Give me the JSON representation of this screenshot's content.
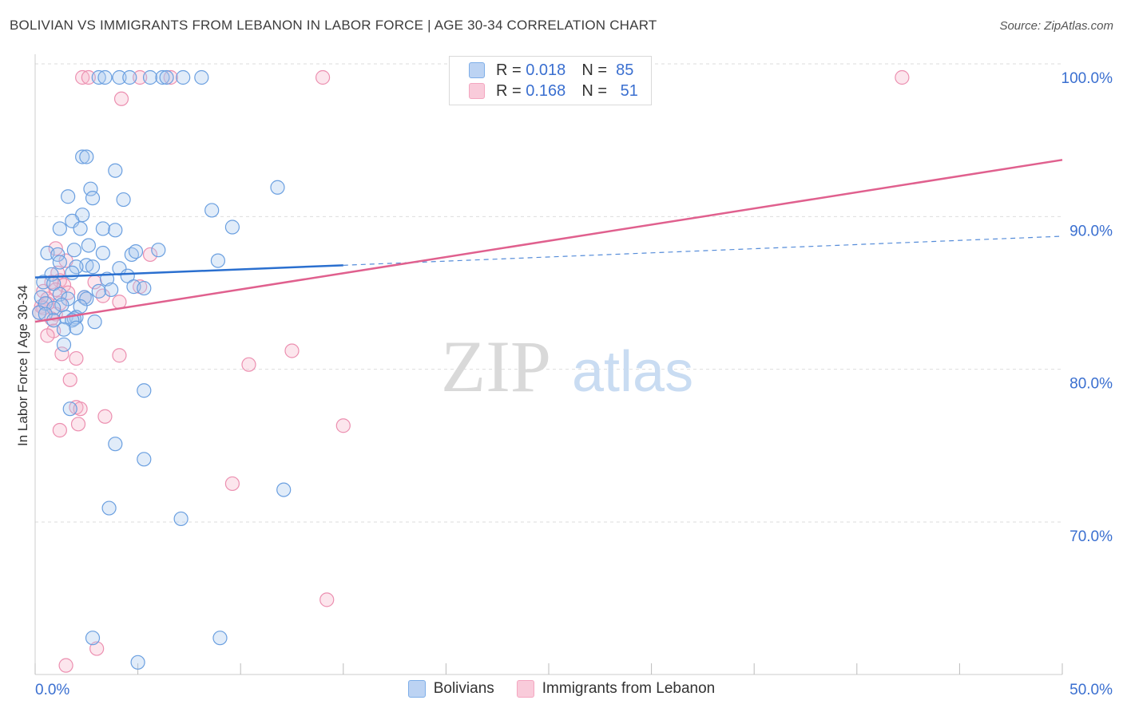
{
  "header": {
    "title": "BOLIVIAN VS IMMIGRANTS FROM LEBANON IN LABOR FORCE | AGE 30-34 CORRELATION CHART",
    "source": "Source: ZipAtlas.com"
  },
  "watermark": {
    "zip": "ZIP",
    "atlas": "atlas"
  },
  "legend": {
    "rows": [
      {
        "r_label": "R =",
        "r_value": "0.018",
        "n_label": "N =",
        "n_value": "85"
      },
      {
        "r_label": "R =",
        "r_value": "0.168",
        "n_label": "N =",
        "n_value": "51"
      }
    ]
  },
  "bottom_legend": {
    "series1": "Bolivians",
    "series2": "Immigrants from Lebanon"
  },
  "colors": {
    "blue": "#7eaee8",
    "blue_line": "#2a6fcf",
    "pink": "#f4a6c0",
    "pink_line": "#e0608e",
    "axis_text": "#3a6fd0",
    "grid": "#dddddd"
  },
  "chart_data": {
    "type": "scatter",
    "title": "BOLIVIAN VS IMMIGRANTS FROM LEBANON IN LABOR FORCE | AGE 30-34 CORRELATION CHART",
    "xlabel": "",
    "ylabel": "In Labor Force | Age 30-34",
    "xlim": [
      0,
      50
    ],
    "ylim": [
      60.5,
      101.5
    ],
    "x_tick_labels": [
      "0.0%",
      "50.0%"
    ],
    "y_ticks": [
      70,
      80,
      90,
      100
    ],
    "y_tick_labels": [
      "70.0%",
      "80.0%",
      "90.0%",
      "100.0%"
    ],
    "grid": true,
    "legend_position": "top-center",
    "series": [
      {
        "name": "Bolivians",
        "color": "#7eaee8",
        "r": 0.018,
        "n": 85,
        "trend": {
          "x": [
            0,
            15
          ],
          "y": [
            86.9,
            87.7
          ],
          "dashed_to": [
            50,
            89.6
          ]
        },
        "points": [
          [
            3.1,
            100
          ],
          [
            3.4,
            100
          ],
          [
            4.1,
            100
          ],
          [
            4.6,
            100
          ],
          [
            5.6,
            100
          ],
          [
            6.2,
            100
          ],
          [
            6.4,
            100
          ],
          [
            7.2,
            100
          ],
          [
            8.1,
            100
          ],
          [
            2.3,
            94.8
          ],
          [
            2.5,
            94.8
          ],
          [
            3.9,
            93.9
          ],
          [
            11.8,
            92.8
          ],
          [
            2.7,
            92.7
          ],
          [
            1.6,
            92.2
          ],
          [
            2.8,
            92.1
          ],
          [
            4.3,
            92
          ],
          [
            8.6,
            91.3
          ],
          [
            2.3,
            91
          ],
          [
            1.8,
            90.6
          ],
          [
            9.6,
            90.2
          ],
          [
            1.2,
            90.1
          ],
          [
            2.2,
            90.1
          ],
          [
            3.3,
            90.1
          ],
          [
            3.9,
            90
          ],
          [
            2.6,
            89
          ],
          [
            1.9,
            88.7
          ],
          [
            0.6,
            88.5
          ],
          [
            1.1,
            88.4
          ],
          [
            3.3,
            88.5
          ],
          [
            4.7,
            88.4
          ],
          [
            4.9,
            88.6
          ],
          [
            6,
            88.7
          ],
          [
            8.9,
            88
          ],
          [
            1.2,
            87.9
          ],
          [
            2.5,
            87.7
          ],
          [
            2.8,
            87.6
          ],
          [
            2,
            87.6
          ],
          [
            4.1,
            87.5
          ],
          [
            1.8,
            87.2
          ],
          [
            0.8,
            87.1
          ],
          [
            4.5,
            87
          ],
          [
            3.5,
            86.8
          ],
          [
            0.4,
            86.6
          ],
          [
            0.9,
            86.5
          ],
          [
            4.8,
            86.3
          ],
          [
            5.3,
            86.2
          ],
          [
            3.7,
            86.1
          ],
          [
            3.1,
            86
          ],
          [
            1.2,
            85.8
          ],
          [
            2.4,
            85.6
          ],
          [
            2.5,
            85.5
          ],
          [
            0.3,
            85.6
          ],
          [
            1.6,
            85.5
          ],
          [
            0.5,
            85.2
          ],
          [
            1.3,
            85.1
          ],
          [
            2.2,
            85
          ],
          [
            0.9,
            84.9
          ],
          [
            0.2,
            84.6
          ],
          [
            0.5,
            84.5
          ],
          [
            1.5,
            84.3
          ],
          [
            2,
            84.3
          ],
          [
            0.9,
            84.1
          ],
          [
            1.9,
            84.2
          ],
          [
            1.8,
            84.1
          ],
          [
            2.9,
            84
          ],
          [
            1.4,
            83.5
          ],
          [
            2,
            83.6
          ],
          [
            1.4,
            82.5
          ],
          [
            5.3,
            79.5
          ],
          [
            1.7,
            78.3
          ],
          [
            3.9,
            76
          ],
          [
            5.3,
            75
          ],
          [
            12.1,
            73
          ],
          [
            3.6,
            71.8
          ],
          [
            7.1,
            71.1
          ],
          [
            2.8,
            63.3
          ],
          [
            9,
            63.3
          ],
          [
            5,
            61.7
          ]
        ]
      },
      {
        "name": "Immigrants from Lebanon",
        "color": "#f4a6c0",
        "r": 0.168,
        "n": 51,
        "trend": {
          "x": [
            0,
            50
          ],
          "y": [
            84,
            94.6
          ]
        },
        "points": [
          [
            2.3,
            100
          ],
          [
            2.6,
            100
          ],
          [
            5.1,
            100
          ],
          [
            6.6,
            100
          ],
          [
            14,
            100
          ],
          [
            42.2,
            100
          ],
          [
            4.2,
            98.6
          ],
          [
            1,
            88.8
          ],
          [
            5.6,
            88.4
          ],
          [
            1.5,
            88
          ],
          [
            1.1,
            87.2
          ],
          [
            1.2,
            86.7
          ],
          [
            0.8,
            86.6
          ],
          [
            2.9,
            86.6
          ],
          [
            1.4,
            86.4
          ],
          [
            5.1,
            86.3
          ],
          [
            1,
            86.1
          ],
          [
            0.4,
            86
          ],
          [
            1.6,
            85.9
          ],
          [
            3.3,
            85.7
          ],
          [
            2.4,
            85.6
          ],
          [
            0.6,
            85.5
          ],
          [
            4.1,
            85.3
          ],
          [
            1.2,
            85.2
          ],
          [
            0.3,
            85
          ],
          [
            0.6,
            85.2
          ],
          [
            0.4,
            84.9
          ],
          [
            0.2,
            84.6
          ],
          [
            1,
            84.5
          ],
          [
            0.8,
            84.2
          ],
          [
            0.9,
            83.4
          ],
          [
            0.6,
            83.1
          ],
          [
            12.5,
            82.1
          ],
          [
            1.3,
            81.9
          ],
          [
            4.1,
            81.8
          ],
          [
            2,
            81.6
          ],
          [
            10.4,
            81.2
          ],
          [
            1.7,
            80.2
          ],
          [
            2,
            78.4
          ],
          [
            2.2,
            78.3
          ],
          [
            3.4,
            77.8
          ],
          [
            2.1,
            77.3
          ],
          [
            15,
            77.2
          ],
          [
            1.2,
            76.9
          ],
          [
            9.6,
            73.4
          ],
          [
            14.2,
            65.8
          ],
          [
            3,
            62.6
          ],
          [
            1.5,
            61.5
          ]
        ]
      }
    ]
  }
}
